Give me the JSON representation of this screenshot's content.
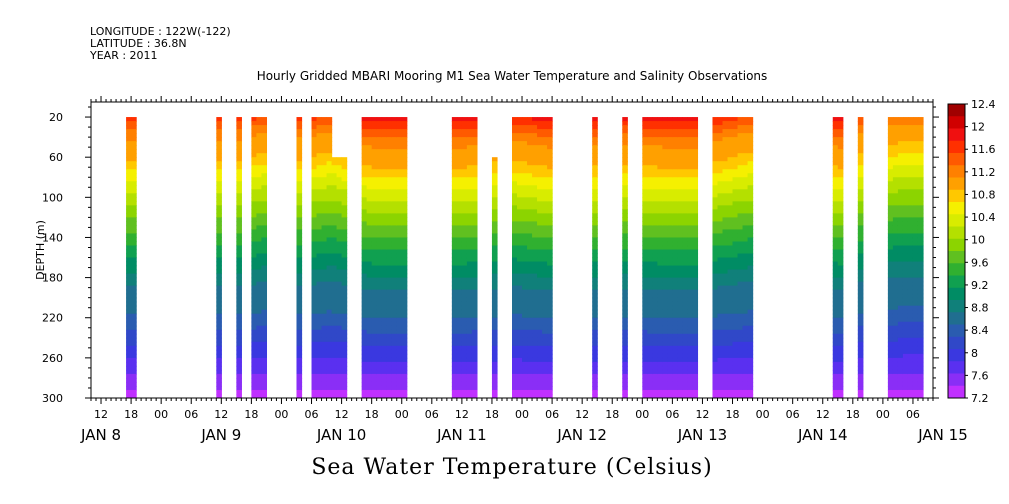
{
  "header": {
    "longitude": "LONGITUDE : 122W(-122)",
    "latitude": "LATITUDE : 36.8N",
    "year": "YEAR : 2011"
  },
  "footer": {
    "title": "Sea Water Temperature (Celsius)"
  },
  "colors": [
    "#a00000",
    "#d00000",
    "#f01010",
    "#ff3000",
    "#ff5a00",
    "#ff8000",
    "#ffa000",
    "#ffc800",
    "#f5f000",
    "#d8ec00",
    "#b4e000",
    "#8cd400",
    "#60c020",
    "#30b030",
    "#10a050",
    "#008c64",
    "#10807a",
    "#206e90",
    "#2a5cb0",
    "#3048c8",
    "#3a38e0",
    "#5a30f0",
    "#8a2ef6",
    "#c030ff"
  ],
  "chart_data": {
    "type": "heatmap",
    "title": "Hourly Gridded MBARI Mooring M1 Sea Water Temperature and Salinity Observations",
    "xlabel": "",
    "ylabel": "DEPTH (m)",
    "x_unit": "hours since 2011-01-08 00:00",
    "xlim": [
      10,
      178
    ],
    "ylim": [
      300,
      5
    ],
    "y_ticks": [
      20,
      60,
      100,
      140,
      180,
      220,
      260,
      300
    ],
    "hour_tick_labels": [
      "12",
      "18",
      "00",
      "06",
      "12",
      "18",
      "00",
      "06",
      "12",
      "18",
      "00",
      "06",
      "12",
      "18",
      "00",
      "06",
      "12",
      "18",
      "00",
      "06",
      "12",
      "18",
      "00",
      "06",
      "12",
      "18",
      "00",
      "06"
    ],
    "date_labels": [
      "JAN  8",
      "JAN  9",
      "JAN 10",
      "JAN 11",
      "JAN 12",
      "JAN 13",
      "JAN 14",
      "JAN 15"
    ],
    "colorbar": {
      "levels": [
        7.2,
        7.4,
        7.6,
        7.8,
        8,
        8.2,
        8.4,
        8.6,
        8.8,
        9,
        9.2,
        9.4,
        9.6,
        9.8,
        10,
        10.2,
        10.4,
        10.6,
        10.8,
        11,
        11.2,
        11.4,
        11.6,
        11.8,
        12,
        12.2,
        12.4
      ],
      "tick_labels": [
        "12.4",
        "12",
        "11.6",
        "11.2",
        "10.8",
        "10.4",
        "10",
        "9.6",
        "9.2",
        "8.8",
        "8.4",
        "8",
        "7.6",
        "7.2"
      ]
    },
    "data_segments": [
      {
        "start": 17,
        "end": 19,
        "top": 20
      },
      {
        "start": 35,
        "end": 36,
        "top": 20
      },
      {
        "start": 39,
        "end": 40,
        "top": 20
      },
      {
        "start": 42,
        "end": 45,
        "top": 20
      },
      {
        "start": 51,
        "end": 52,
        "top": 20
      },
      {
        "start": 54,
        "end": 58,
        "top": 20
      },
      {
        "start": 58,
        "end": 61,
        "top": 60
      },
      {
        "start": 64,
        "end": 73,
        "top": 20
      },
      {
        "start": 82,
        "end": 87,
        "top": 20
      },
      {
        "start": 90,
        "end": 91,
        "top": 60
      },
      {
        "start": 94,
        "end": 102,
        "top": 20
      },
      {
        "start": 110,
        "end": 111,
        "top": 20
      },
      {
        "start": 116,
        "end": 117,
        "top": 20
      },
      {
        "start": 120,
        "end": 131,
        "top": 20
      },
      {
        "start": 134,
        "end": 142,
        "top": 20
      },
      {
        "start": 158,
        "end": 160,
        "top": 20
      },
      {
        "start": 163,
        "end": 164,
        "top": 20
      },
      {
        "start": 169,
        "end": 176,
        "top": 20
      }
    ],
    "surface_temperature": [
      {
        "x": 17,
        "t": 11.8
      },
      {
        "x": 40,
        "t": 11.8
      },
      {
        "x": 45,
        "t": 11.6
      },
      {
        "x": 52,
        "t": 11.8
      },
      {
        "x": 58,
        "t": 11.6
      },
      {
        "x": 66,
        "t": 12.0
      },
      {
        "x": 72,
        "t": 12.0
      },
      {
        "x": 84,
        "t": 12.0
      },
      {
        "x": 94,
        "t": 11.8
      },
      {
        "x": 102,
        "t": 12.0
      },
      {
        "x": 116,
        "t": 11.9
      },
      {
        "x": 125,
        "t": 12.0
      },
      {
        "x": 131,
        "t": 12.0
      },
      {
        "x": 136,
        "t": 11.8
      },
      {
        "x": 142,
        "t": 11.6
      },
      {
        "x": 160,
        "t": 12.0
      },
      {
        "x": 164,
        "t": 11.6
      },
      {
        "x": 172,
        "t": 11.4
      },
      {
        "x": 176,
        "t": 11.4
      }
    ]
  }
}
